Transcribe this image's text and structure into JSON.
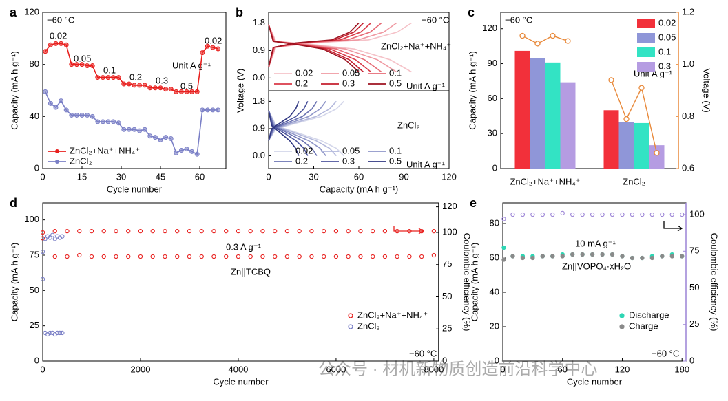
{
  "watermark": "公众号 · 材机新物质创造前沿科学中心",
  "chart_data": [
    {
      "type": "line",
      "label": "a",
      "xlabel": "Cycle number",
      "ylabel": "Capacity (mA h g⁻¹)",
      "xlim": [
        0,
        70
      ],
      "xticks": [
        0,
        15,
        30,
        45,
        60
      ],
      "ylim": [
        0,
        120
      ],
      "yticks": [
        0,
        40,
        80,
        120
      ],
      "markers": true,
      "legend": "lower left",
      "annotations": [
        "−60 °C",
        "Unit A g⁻¹",
        "0.02",
        "0.05",
        "0.1",
        "0.2",
        "0.3",
        "0.5",
        "0.02"
      ],
      "x": [
        1,
        3,
        5,
        7,
        9,
        11,
        13,
        15,
        17,
        19,
        21,
        23,
        25,
        27,
        29,
        31,
        33,
        35,
        37,
        39,
        41,
        43,
        45,
        47,
        49,
        51,
        53,
        55,
        57,
        59,
        61,
        63,
        65,
        67
      ],
      "series": [
        {
          "name": "ZnCl₂+Na⁺+NH₄⁺",
          "color": "#e8201e",
          "values": [
            90,
            95,
            96,
            96,
            95,
            80,
            80,
            80,
            79,
            79,
            70,
            70,
            70,
            70,
            70,
            65,
            65,
            64,
            64,
            64,
            62,
            62,
            62,
            61,
            61,
            59,
            59,
            59,
            59,
            59,
            89,
            94,
            93,
            92
          ]
        },
        {
          "name": "ZnCl₂",
          "color": "#7a7fc6",
          "values": [
            59,
            50,
            47,
            52,
            45,
            41,
            41,
            41,
            41,
            40,
            36,
            36,
            36,
            36,
            35,
            30,
            30,
            30,
            29,
            30,
            25,
            24,
            22,
            24,
            23,
            12,
            14,
            15,
            13,
            11,
            45,
            45,
            45,
            45
          ]
        }
      ]
    },
    {
      "type": "line",
      "label": "b",
      "ylabel": "Voltage (V)",
      "xlim": [
        0,
        120
      ],
      "ylim": [
        -0.42,
        2.15
      ],
      "yticks": [
        {
          "value": 0,
          "label": "0.0"
        },
        0.9,
        1.8
      ],
      "legend": "lower left",
      "legend_columns": 3,
      "annotations": [
        "−60 °C",
        "ZnCl₂+Na⁺+NH₄⁺",
        "Unit A g⁻¹"
      ],
      "series": [
        {
          "name": "0.02",
          "color": "#f5c2c8",
          "x": [
            0,
            4.8,
            28.5,
            57,
            80.8,
            95,
            null,
            0,
            4.8,
            28.5,
            66.5,
            85.5,
            95
          ],
          "values": [
            1.75,
            1.2,
            1.1,
            0.95,
            0.6,
            0.2,
            null,
            0.35,
            1.0,
            1.15,
            1.25,
            1.5,
            1.8
          ]
        },
        {
          "name": "0.05",
          "color": "#ef98a1",
          "x": [
            0,
            4.3,
            25.5,
            51,
            72.3,
            85,
            null,
            0,
            4.3,
            25.5,
            59.5,
            76.5,
            85
          ],
          "values": [
            1.75,
            1.2,
            1.1,
            0.95,
            0.6,
            0.2,
            null,
            0.35,
            1.0,
            1.15,
            1.25,
            1.5,
            1.8
          ]
        },
        {
          "name": "0.1",
          "color": "#e66a75",
          "x": [
            0,
            3.8,
            22.5,
            45,
            63.8,
            75,
            null,
            0,
            3.8,
            22.5,
            52.5,
            67.5,
            75
          ],
          "values": [
            1.75,
            1.2,
            1.1,
            0.95,
            0.6,
            0.2,
            null,
            0.35,
            1.0,
            1.15,
            1.25,
            1.5,
            1.8
          ]
        },
        {
          "name": "0.2",
          "color": "#d93a48",
          "x": [
            0,
            3.4,
            20.4,
            40.8,
            57.8,
            68,
            null,
            0,
            3.4,
            20.4,
            47.6,
            61.2,
            68
          ],
          "values": [
            1.75,
            1.2,
            1.1,
            0.95,
            0.6,
            0.2,
            null,
            0.35,
            1.0,
            1.15,
            1.25,
            1.5,
            1.8
          ]
        },
        {
          "name": "0.3",
          "color": "#c41f2e",
          "x": [
            0,
            3.2,
            18.9,
            37.8,
            53.6,
            63,
            null,
            0,
            3.2,
            18.9,
            44.1,
            56.7,
            63
          ],
          "values": [
            1.75,
            1.2,
            1.1,
            0.95,
            0.6,
            0.2,
            null,
            0.35,
            1.0,
            1.15,
            1.25,
            1.5,
            1.8
          ]
        },
        {
          "name": "0.5",
          "color": "#9e1320",
          "x": [
            0,
            3,
            18,
            36,
            51,
            60,
            null,
            0,
            3,
            18,
            42,
            54,
            60
          ],
          "values": [
            1.75,
            1.2,
            1.1,
            0.95,
            0.6,
            0.2,
            null,
            0.35,
            1.0,
            1.15,
            1.25,
            1.5,
            1.8
          ]
        }
      ]
    },
    {
      "type": "line",
      "xlabel": "Capacity (mA h g⁻¹)",
      "xlim": [
        0,
        120
      ],
      "xticks": [
        0,
        30,
        60,
        90,
        120
      ],
      "ylim": [
        -0.42,
        2.15
      ],
      "yticks": [
        {
          "value": 0,
          "label": "0.0"
        },
        0.9,
        1.8
      ],
      "legend": "lower left",
      "legend_columns": 3,
      "annotations": [
        "ZnCl₂",
        "Unit A g⁻¹"
      ],
      "series": [
        {
          "name": "0.02",
          "color": "#d3d6ea",
          "x": [
            0,
            5,
            20,
            35,
            45,
            50,
            null,
            0,
            5,
            20,
            35,
            45,
            50
          ],
          "values": [
            1.5,
            1.0,
            0.75,
            0.5,
            0.25,
            0,
            null,
            0.5,
            0.9,
            1.1,
            1.3,
            1.55,
            1.8
          ]
        },
        {
          "name": "0.05",
          "color": "#b3b8dc",
          "x": [
            0,
            4.5,
            18,
            31.5,
            40.5,
            45,
            null,
            0,
            4.5,
            18,
            31.5,
            40.5,
            45
          ],
          "values": [
            1.5,
            1.0,
            0.75,
            0.5,
            0.25,
            0,
            null,
            0.5,
            0.9,
            1.1,
            1.3,
            1.55,
            1.8
          ]
        },
        {
          "name": "0.1",
          "color": "#8e95c8",
          "x": [
            0,
            3.8,
            15.2,
            26.6,
            34.2,
            38,
            null,
            0,
            3.8,
            15.2,
            26.6,
            34.2,
            38
          ],
          "values": [
            1.5,
            1.0,
            0.75,
            0.5,
            0.25,
            0,
            null,
            0.5,
            0.9,
            1.1,
            1.3,
            1.55,
            1.8
          ]
        },
        {
          "name": "0.2",
          "color": "#6a72b2",
          "x": [
            0,
            3.2,
            12.8,
            22.4,
            28.8,
            32,
            null,
            0,
            3.2,
            12.8,
            22.4,
            28.8,
            32
          ],
          "values": [
            1.5,
            1.0,
            0.75,
            0.5,
            0.25,
            0,
            null,
            0.5,
            0.9,
            1.1,
            1.3,
            1.55,
            1.8
          ]
        },
        {
          "name": "0.3",
          "color": "#4b539c",
          "x": [
            0,
            2.6,
            10.4,
            18.2,
            23.4,
            26,
            null,
            0,
            2.6,
            10.4,
            18.2,
            23.4,
            26
          ],
          "values": [
            1.5,
            1.0,
            0.75,
            0.5,
            0.25,
            0,
            null,
            0.5,
            0.9,
            1.1,
            1.3,
            1.55,
            1.8
          ]
        },
        {
          "name": "0.5",
          "color": "#2e3580",
          "x": [
            0,
            2,
            8,
            14,
            18,
            20,
            null,
            0,
            2,
            8,
            14,
            18,
            20
          ],
          "values": [
            1.5,
            1.0,
            0.75,
            0.5,
            0.25,
            0,
            null,
            0.5,
            0.9,
            1.1,
            1.3,
            1.55,
            1.8
          ]
        }
      ]
    },
    {
      "type": "bar",
      "label": "c",
      "ylabel": "Capacity (mA h g⁻¹)",
      "y2label": "Voltage (V)",
      "y2_color": "#e8893a",
      "categories": [
        "ZnCl₂+Na⁺+NH₄⁺",
        "ZnCl₂"
      ],
      "ylim": [
        0,
        134
      ],
      "yticks": [
        0,
        30,
        60,
        90,
        120
      ],
      "y2lim": [
        0.6,
        1.2
      ],
      "y2ticks": [
        0.6,
        0.8,
        {
          "value": 1,
          "label": "1.0"
        },
        1.2
      ],
      "legend": "upper right",
      "annotations": [
        "−60 °C",
        "Unit A g⁻¹"
      ],
      "series": [
        {
          "name": "0.02",
          "color": "#f2303a",
          "values": [
            101,
            50
          ],
          "y2_values": [
            1.11,
            0.94
          ]
        },
        {
          "name": "0.05",
          "color": "#8f96d8",
          "values": [
            95,
            40
          ],
          "y2_values": [
            1.08,
            0.79
          ]
        },
        {
          "name": "0.1",
          "color": "#33e3c4",
          "values": [
            91,
            39
          ],
          "y2_values": [
            1.11,
            0.91
          ]
        },
        {
          "name": "0.3",
          "color": "#b59ce2",
          "values": [
            74,
            20
          ],
          "y2_values": [
            1.09,
            0.66
          ]
        }
      ]
    },
    {
      "type": "scatter",
      "label": "d",
      "xlabel": "Cycle number",
      "ylabel": "Capacity (mA h g⁻¹)",
      "y2label": "Coulombic efficiency (%)",
      "xlim": [
        0,
        8100
      ],
      "xticks": [
        0,
        2000,
        4000,
        6000,
        8000
      ],
      "ylim": [
        0,
        112
      ],
      "yticks": [
        0,
        25,
        50,
        75,
        100
      ],
      "y2lim": [
        0,
        123
      ],
      "y2ticks": [
        0,
        25,
        50,
        75,
        100,
        120
      ],
      "legend": "lower right",
      "annotations": [
        "0.3 A g⁻¹",
        "Zn||TCBQ",
        "−60 °C"
      ],
      "series": [
        {
          "name": "ZnCl₂+Na⁺+NH₄⁺",
          "color": "#e8201e",
          "x": [
            1,
            250,
            500,
            750,
            1000,
            1250,
            1500,
            1750,
            2000,
            2250,
            2500,
            2750,
            3000,
            3250,
            3500,
            3750,
            4000,
            4250,
            4500,
            4750,
            5000,
            5250,
            5500,
            5750,
            6000,
            6250,
            6500,
            6750,
            7000,
            7250,
            7500,
            7750,
            8000
          ],
          "values": [
            87,
            74,
            74,
            75,
            74,
            74,
            74,
            74,
            74,
            74,
            74,
            74,
            74,
            74,
            74,
            74,
            74,
            74,
            74,
            74,
            74,
            74,
            74,
            74,
            74,
            74,
            74,
            74,
            74,
            74,
            74,
            74,
            75
          ],
          "y2_values": [
            100,
            101,
            101,
            101,
            101,
            101,
            101,
            101,
            101,
            101,
            101,
            101,
            101,
            101,
            101,
            101,
            101,
            101,
            101,
            101,
            101,
            101,
            101,
            101,
            101,
            101,
            101,
            101,
            101,
            101,
            101,
            101,
            101
          ]
        },
        {
          "name": "ZnCl₂",
          "color": "#7a7fc6",
          "x": [
            1,
            50,
            100,
            150,
            200,
            250,
            300,
            350,
            400
          ],
          "values": [
            58,
            20,
            19,
            20,
            20,
            19,
            20,
            20,
            20
          ],
          "y2_values": [
            85,
            95,
            97,
            96,
            98,
            95,
            97,
            96,
            97
          ]
        }
      ]
    },
    {
      "type": "scatter",
      "label": "e",
      "xlabel": "Cycle number",
      "ylabel": "Capacity (mA h g⁻¹)",
      "y2label": "Coulombic efficiency (%)",
      "y2_color": "#9b84d6",
      "xlim": [
        0,
        184
      ],
      "xticks": [
        0,
        60,
        120,
        180
      ],
      "ylim": [
        0,
        92
      ],
      "yticks": [
        0,
        20,
        40,
        60,
        80
      ],
      "y2lim": [
        0,
        108
      ],
      "y2ticks": [
        0,
        25,
        50,
        75,
        100
      ],
      "legend": "lower right",
      "annotations": [
        "10 mA g⁻¹",
        "Zn||VOPO₄·xH₂O",
        "−60 °C"
      ],
      "x": [
        1,
        10,
        20,
        30,
        40,
        50,
        60,
        70,
        80,
        90,
        100,
        110,
        120,
        130,
        140,
        150,
        160,
        170,
        180
      ],
      "series": [
        {
          "name": "Discharge",
          "color": "#2fd6b4",
          "values": [
            66,
            61,
            61,
            61,
            61,
            61,
            62,
            62,
            62,
            62,
            62,
            62,
            61,
            60,
            60,
            61,
            61,
            62,
            61
          ],
          "y2_values": [
            97,
            100,
            100,
            100,
            100,
            100,
            101,
            100,
            100,
            100,
            100,
            100,
            100,
            100,
            100,
            100,
            100,
            100,
            100
          ]
        },
        {
          "name": "Charge",
          "color": "#8a8a8a",
          "values": [
            59,
            61,
            60,
            60,
            61,
            61,
            61,
            62,
            62,
            62,
            62,
            62,
            61,
            60,
            60,
            60,
            61,
            61,
            61
          ]
        }
      ]
    }
  ]
}
